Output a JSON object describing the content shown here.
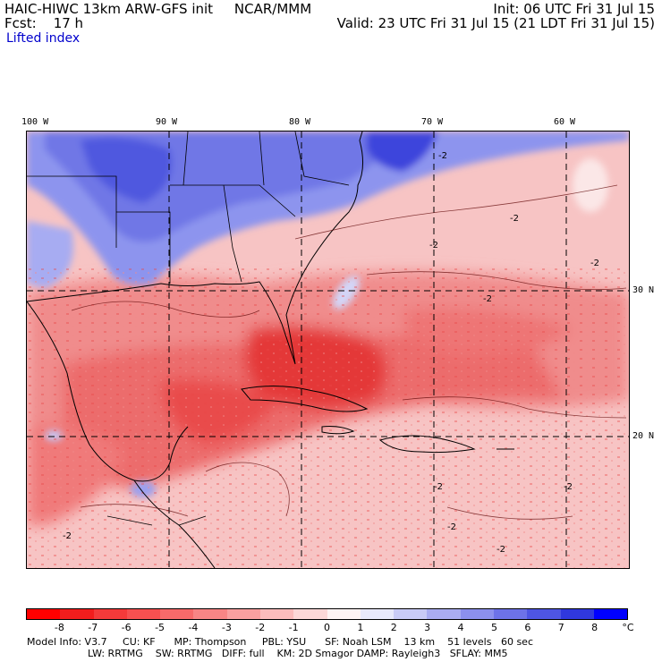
{
  "header": {
    "model_line": "HAIC-HIWC 13km ARW-GFS init     NCAR/MMM",
    "forecast_line": "Fcst:    17 h",
    "field_name": "Lifted index",
    "init_line": "Init: 06 UTC Fri 31 Jul 15",
    "valid_line": "Valid: 23 UTC Fri 31 Jul 15 (21 LDT Fri 31 Jul 15)"
  },
  "map": {
    "lon_labels": [
      "100 W",
      "90 W",
      "80 W",
      "70 W",
      "60 W"
    ],
    "lat_labels": [
      "30 N",
      "20 N"
    ],
    "contour_labels": [
      "-2",
      "-2",
      "-2",
      "-2",
      "-2",
      "-2",
      "-2",
      "-2",
      "-2",
      "-2"
    ],
    "colors": {
      "stable_dark": "#3d46e0",
      "stable_mid": "#7f86ea",
      "neutral": "#f7c4c4",
      "unstable_mid": "#ef6b6b",
      "unstable_dark": "#e42121"
    }
  },
  "colorbar": {
    "labels": [
      "-8",
      "-7",
      "-6",
      "-5",
      "-4",
      "-3",
      "-2",
      "-1",
      "0",
      "1",
      "2",
      "3",
      "4",
      "5",
      "6",
      "7",
      "8"
    ],
    "unit": "°C",
    "colors": [
      "#ff0000",
      "#f21d1d",
      "#f43a3a",
      "#f65050",
      "#f76a6a",
      "#f88585",
      "#f9a0a0",
      "#fbbcbc",
      "#fcd8d8",
      "#fef4f4",
      "#e8e9fb",
      "#c9cbf6",
      "#aaadf1",
      "#8c90ed",
      "#6d72e8",
      "#4e55e3",
      "#3038de",
      "#0000ff"
    ]
  },
  "footer": {
    "line1": "Model Info: V3.7     CU: KF      MP: Thompson     PBL: YSU      SF: Noah LSM    13 km    51 levels   60 sec",
    "line2": "LW: RRTMG    SW: RRTMG   DIFF: full    KM: 2D Smagor DAMP: Rayleigh3   SFLAY: MM5"
  }
}
